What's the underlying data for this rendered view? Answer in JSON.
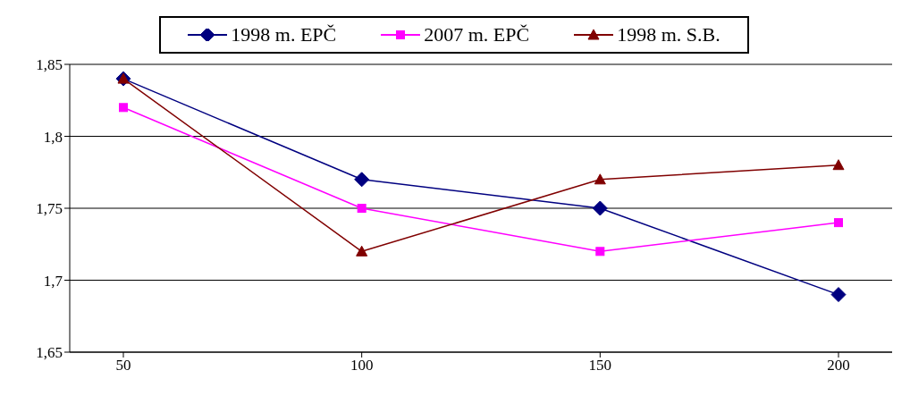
{
  "chart_data": {
    "type": "line",
    "categories": [
      "50",
      "100",
      "150",
      "200"
    ],
    "series": [
      {
        "name": "1998 m. EPČ",
        "color": "#000080",
        "marker": "diamond",
        "values": [
          1.84,
          1.77,
          1.75,
          1.69
        ]
      },
      {
        "name": "2007 m. EPČ",
        "color": "#ff00ff",
        "marker": "square",
        "values": [
          1.82,
          1.75,
          1.72,
          1.74
        ]
      },
      {
        "name": "1998 m. S.B.",
        "color": "#800000",
        "marker": "triangle",
        "values": [
          1.84,
          1.72,
          1.77,
          1.78
        ]
      }
    ],
    "ylim": [
      1.65,
      1.85
    ],
    "yticks": [
      {
        "value": 1.65,
        "label": "1,65"
      },
      {
        "value": 1.7,
        "label": "1,7"
      },
      {
        "value": 1.75,
        "label": "1,75"
      },
      {
        "value": 1.8,
        "label": "1,8"
      },
      {
        "value": 1.85,
        "label": "1,85"
      }
    ],
    "grid": "y",
    "legend": "top",
    "line_style": "solid"
  }
}
